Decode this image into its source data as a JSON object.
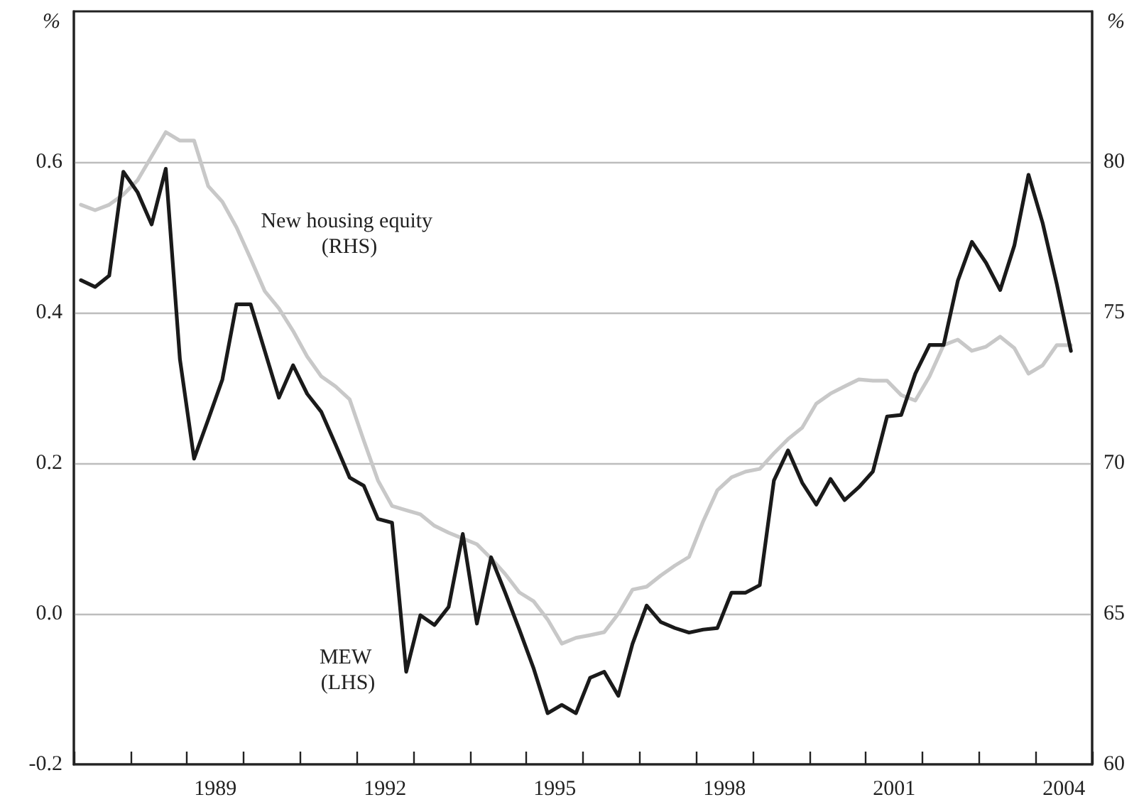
{
  "chart_data": {
    "type": "line",
    "ylabel": "%",
    "y2label": "%",
    "x": [
      1987.125,
      1987.375,
      1987.625,
      1987.875,
      1988.125,
      1988.375,
      1988.625,
      1988.875,
      1989.125,
      1989.375,
      1989.625,
      1989.875,
      1990.125,
      1990.375,
      1990.625,
      1990.875,
      1991.125,
      1991.375,
      1991.625,
      1991.875,
      1992.125,
      1992.375,
      1992.625,
      1992.875,
      1993.125,
      1993.375,
      1993.625,
      1993.875,
      1994.125,
      1994.375,
      1994.625,
      1994.875,
      1995.125,
      1995.375,
      1995.625,
      1995.875,
      1996.125,
      1996.375,
      1996.625,
      1996.875,
      1997.125,
      1997.375,
      1997.625,
      1997.875,
      1998.125,
      1998.375,
      1998.625,
      1998.875,
      1999.125,
      1999.375,
      1999.625,
      1999.875,
      2000.125,
      2000.375,
      2000.625,
      2000.875,
      2001.125,
      2001.375,
      2001.625,
      2001.875,
      2002.125,
      2002.375,
      2002.625,
      2002.875,
      2003.125,
      2003.375,
      2003.625,
      2003.875,
      2004.125,
      2004.375,
      2004.625
    ],
    "series": [
      {
        "name": "New housing equity (RHS)",
        "color": "#c8c8c8",
        "axis": "y2",
        "values": [
          78.58,
          78.4,
          78.58,
          78.92,
          79.39,
          80.19,
          80.99,
          80.71,
          80.71,
          79.2,
          78.68,
          77.83,
          76.79,
          75.71,
          75.14,
          74.39,
          73.54,
          72.88,
          72.55,
          72.12,
          70.75,
          69.43,
          68.58,
          68.44,
          68.3,
          67.92,
          67.69,
          67.5,
          67.31,
          66.84,
          66.32,
          65.71,
          65.42,
          64.81,
          64.01,
          64.2,
          64.29,
          64.39,
          65.0,
          65.8,
          65.9,
          66.27,
          66.6,
          66.89,
          68.07,
          69.1,
          69.53,
          69.72,
          69.81,
          70.33,
          70.8,
          71.18,
          71.98,
          72.31,
          72.55,
          72.78,
          72.74,
          72.74,
          72.26,
          72.08,
          72.88,
          73.92,
          74.1,
          73.73,
          73.87,
          74.2,
          73.82,
          72.97,
          73.25,
          73.92,
          73.92
        ]
      },
      {
        "name": "MEW (LHS)",
        "color": "#1a1a1a",
        "values": [
          0.443,
          0.434,
          0.449,
          0.587,
          0.56,
          0.517,
          0.591,
          0.338,
          0.206,
          0.258,
          0.311,
          0.411,
          0.411,
          0.349,
          0.287,
          0.33,
          0.292,
          0.268,
          0.225,
          0.181,
          0.17,
          0.126,
          0.121,
          -0.077,
          -0.002,
          -0.015,
          0.009,
          0.106,
          -0.013,
          0.075,
          0.028,
          -0.021,
          -0.072,
          -0.132,
          -0.121,
          -0.132,
          -0.085,
          -0.077,
          -0.109,
          -0.04,
          0.011,
          -0.011,
          -0.019,
          -0.025,
          -0.021,
          -0.019,
          0.028,
          0.028,
          0.038,
          0.177,
          0.217,
          0.174,
          0.145,
          0.179,
          0.151,
          0.168,
          0.189,
          0.262,
          0.264,
          0.319,
          0.357,
          0.357,
          0.442,
          0.494,
          0.466,
          0.43,
          0.489,
          0.583,
          0.519,
          0.438,
          0.349
        ]
      }
    ],
    "xlim": [
      1987,
      2005
    ],
    "xticks": [
      {
        "value": 1987,
        "label": null
      },
      {
        "value": 1988,
        "label": null
      },
      {
        "value": 1989,
        "label": null
      },
      {
        "value": 1989.5,
        "label": "1989"
      },
      {
        "value": 1990,
        "label": null
      },
      {
        "value": 1991,
        "label": null
      },
      {
        "value": 1992,
        "label": null
      },
      {
        "value": 1992.5,
        "label": "1992"
      },
      {
        "value": 1993,
        "label": null
      },
      {
        "value": 1994,
        "label": null
      },
      {
        "value": 1995,
        "label": null
      },
      {
        "value": 1995.5,
        "label": "1995"
      },
      {
        "value": 1996,
        "label": null
      },
      {
        "value": 1997,
        "label": null
      },
      {
        "value": 1998,
        "label": null
      },
      {
        "value": 1998.5,
        "label": "1998"
      },
      {
        "value": 1999,
        "label": null
      },
      {
        "value": 2000,
        "label": null
      },
      {
        "value": 2001,
        "label": null
      },
      {
        "value": 2001.5,
        "label": "2001"
      },
      {
        "value": 2002,
        "label": null
      },
      {
        "value": 2003,
        "label": null
      },
      {
        "value": 2004,
        "label": null
      },
      {
        "value": 2004.5,
        "label": "2004"
      },
      {
        "value": 2005,
        "label": null
      }
    ],
    "ylim": [
      -0.2,
      0.8
    ],
    "yticks": [
      -0.2,
      {
        "value": 0,
        "label": "0.0"
      },
      0.2,
      0.4,
      0.6
    ],
    "y2lim": [
      60,
      85
    ],
    "y2ticks": [
      60,
      65,
      70,
      75,
      80
    ],
    "grid": "y",
    "legend": false,
    "marker": "none",
    "line_style": "solid"
  }
}
